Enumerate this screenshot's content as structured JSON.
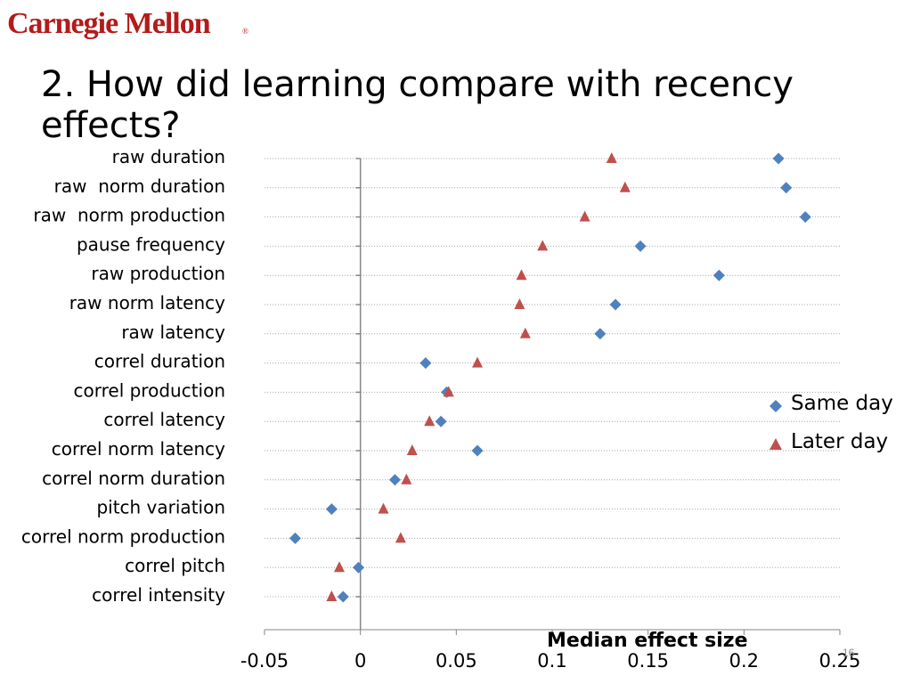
{
  "header": {
    "logo_text": "Carnegie Mellon",
    "logo_mark": "®",
    "title": "2. How did learning compare with recency effects?"
  },
  "slide_number": "16",
  "colors": {
    "same_day": "#4f81bd",
    "later_day": "#c0504d",
    "logo": "#b31b1b",
    "grid": "#a6a6a6"
  },
  "chart_data": {
    "type": "scatter",
    "orientation": "horizontal",
    "categories": [
      "raw duration",
      "raw  norm duration",
      "raw  norm production",
      "pause frequency",
      "raw production",
      "raw norm latency",
      "raw latency",
      "correl duration",
      "correl production",
      "correl latency",
      "correl norm latency",
      "correl norm duration",
      "pitch variation",
      "correl norm production",
      "correl pitch",
      "correl intensity"
    ],
    "series": [
      {
        "name": "Same day",
        "marker": "diamond",
        "values": [
          0.218,
          0.222,
          0.232,
          0.146,
          0.187,
          0.133,
          0.125,
          0.034,
          0.045,
          0.042,
          0.061,
          0.018,
          -0.015,
          -0.034,
          -0.001,
          -0.009
        ]
      },
      {
        "name": "Later day",
        "marker": "triangle",
        "values": [
          0.131,
          0.138,
          0.117,
          0.095,
          0.084,
          0.083,
          0.086,
          0.061,
          0.046,
          0.036,
          0.027,
          0.024,
          0.012,
          0.021,
          -0.011,
          -0.015
        ]
      }
    ],
    "xlabel": "Median effect size",
    "xlim": [
      -0.05,
      0.25
    ],
    "xticks": [
      "-0.05",
      "0",
      "0.05",
      "0.1",
      "0.15",
      "0.2",
      "0.25"
    ],
    "grid": "horizontal dotted",
    "legend": "right"
  }
}
